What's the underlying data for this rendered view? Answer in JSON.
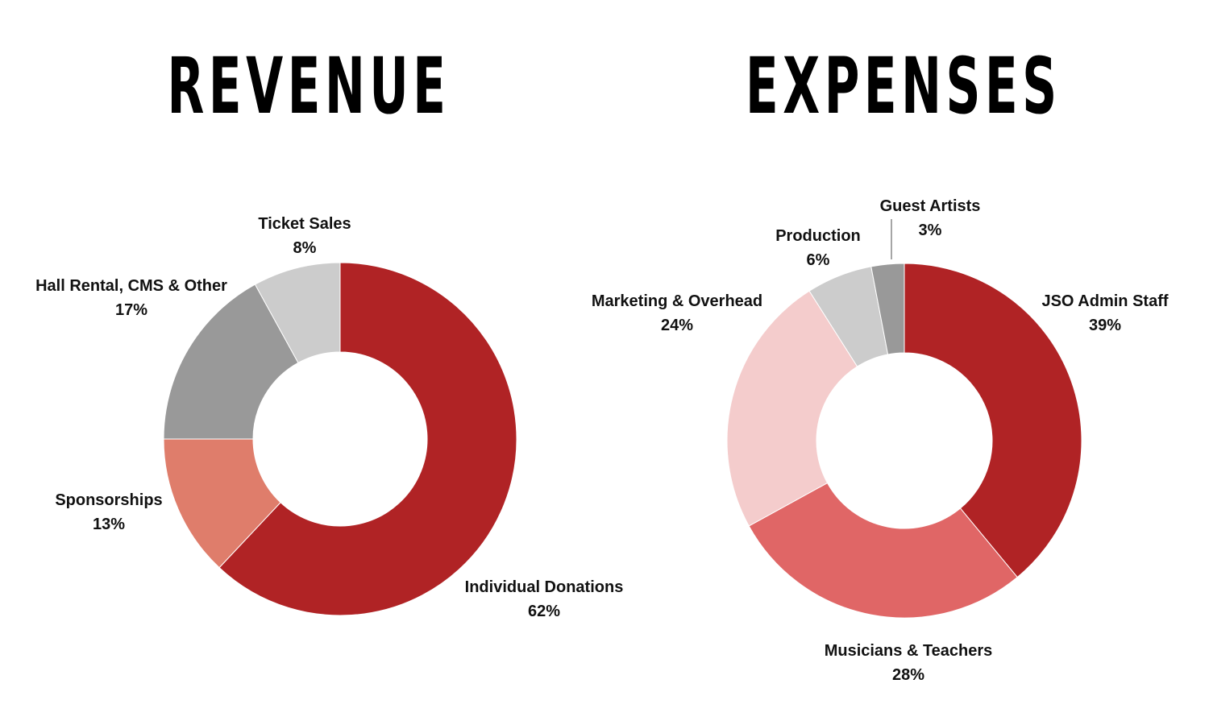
{
  "chart_data": [
    {
      "type": "pie",
      "title": "REVENUE",
      "slices": [
        {
          "label": "Individual Donations",
          "value_label": "62%",
          "value": 62,
          "color": "#B02325"
        },
        {
          "label": "Sponsorships",
          "value_label": "13%",
          "value": 13,
          "color": "#DF7D6B"
        },
        {
          "label": "Hall Rental, CMS & Other",
          "value_label": "17%",
          "value": 17,
          "color": "#999999"
        },
        {
          "label": "Ticket Sales",
          "value_label": "8%",
          "value": 8,
          "color": "#CCCCCC"
        }
      ]
    },
    {
      "type": "pie",
      "title": "EXPENSES",
      "slices": [
        {
          "label": "JSO Admin Staff",
          "value_label": "39%",
          "value": 39,
          "color": "#B02325"
        },
        {
          "label": "Musicians & Teachers",
          "value_label": "28%",
          "value": 28,
          "color": "#E06666"
        },
        {
          "label": "Marketing & Overhead",
          "value_label": "24%",
          "value": 24,
          "color": "#F4CCCC"
        },
        {
          "label": "Production",
          "value_label": "6%",
          "value": 6,
          "color": "#CCCCCC"
        },
        {
          "label": "Guest Artists",
          "value_label": "3%",
          "value": 3,
          "color": "#999999"
        }
      ]
    }
  ]
}
